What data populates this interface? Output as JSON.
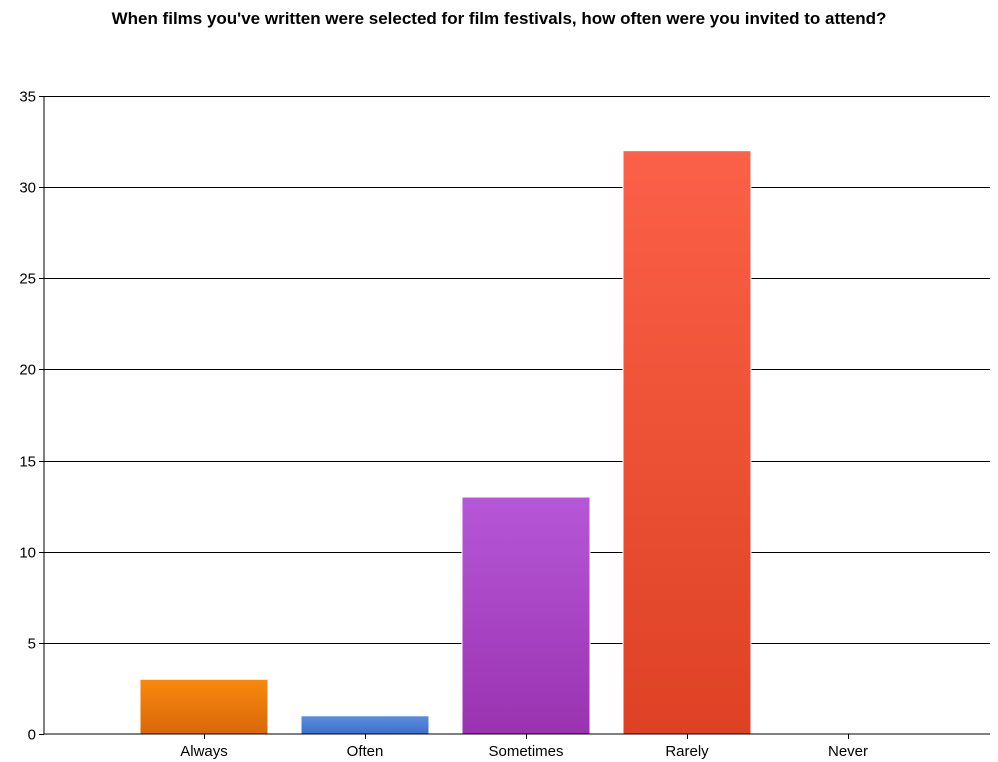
{
  "chart_data": {
    "type": "bar",
    "title": "When films you've written were selected for film festivals, how often were you invited to attend?",
    "xlabel": "",
    "ylabel": "",
    "categories": [
      "Always",
      "Often",
      "Sometimes",
      "Rarely",
      "Never"
    ],
    "values": [
      3,
      1,
      13,
      32,
      0
    ],
    "ylim": [
      0,
      35
    ],
    "yticks": [
      0,
      5,
      10,
      15,
      20,
      25,
      30,
      35
    ],
    "grid": true,
    "legend": "none",
    "colors": [
      {
        "top": "#f9890c",
        "bottom": "#d9670a"
      },
      {
        "top": "#5a8ee0",
        "bottom": "#3e6fc9"
      },
      {
        "top": "#b657d8",
        "bottom": "#9a33b0"
      },
      {
        "top": "#fb6148",
        "bottom": "#de4124"
      },
      {
        "top": "#999999",
        "bottom": "#777777"
      }
    ]
  }
}
